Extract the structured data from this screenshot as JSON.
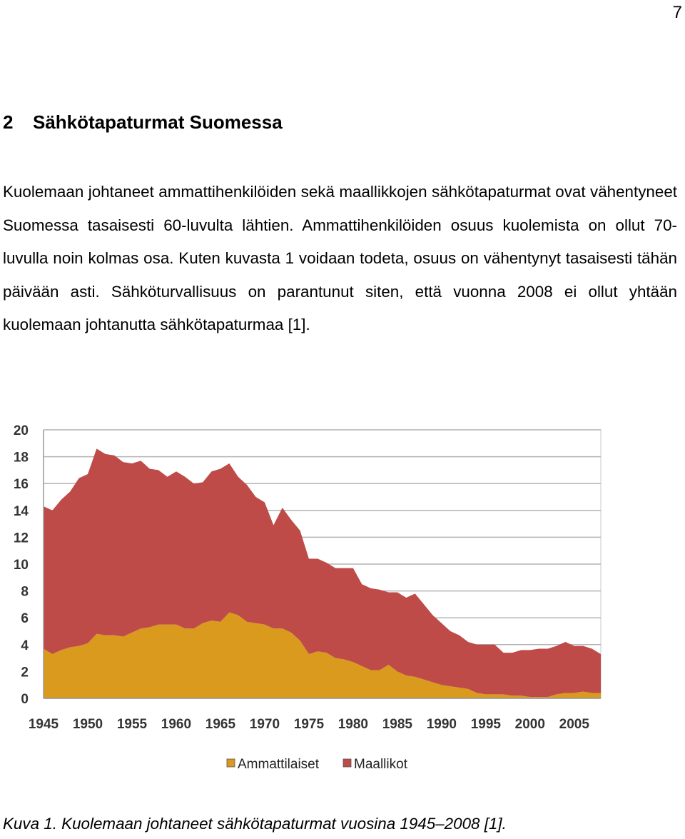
{
  "page_number": "7",
  "section": {
    "number": "2",
    "title": "Sähkötapaturmat Suomessa"
  },
  "paragraph": "Kuolemaan johtaneet ammattihenkilöiden sekä maallikkojen sähkötapaturmat ovat vähentyneet Suomessa tasaisesti 60-luvulta lähtien. Ammattihenkilöiden osuus kuolemista on ollut 70-luvulla noin kolmas osa. Kuten kuvasta 1 voidaan todeta, osuus on vähentynyt tasaisesti tähän päivään asti. Sähköturvallisuus on parantunut siten, että vuonna 2008 ei ollut yhtään kuolemaan johtanutta sähkötapaturmaa [1].",
  "caption": "Kuva 1. Kuolemaan johtaneet sähkötapaturmat vuosina 1945–2008 [1].",
  "chart_data": {
    "type": "area",
    "stacked": true,
    "title": "",
    "xlabel": "",
    "ylabel": "",
    "xlim": [
      1945,
      2008
    ],
    "ylim": [
      0,
      20
    ],
    "x_ticks": [
      "1945",
      "1950",
      "1955",
      "1960",
      "1965",
      "1970",
      "1975",
      "1980",
      "1985",
      "1990",
      "1995",
      "2000",
      "2005"
    ],
    "y_ticks": [
      "0",
      "2",
      "4",
      "6",
      "8",
      "10",
      "12",
      "14",
      "16",
      "18",
      "20"
    ],
    "grid": "horizontal",
    "legend_position": "bottom",
    "x": [
      1945,
      1946,
      1947,
      1948,
      1949,
      1950,
      1951,
      1952,
      1953,
      1954,
      1955,
      1956,
      1957,
      1958,
      1959,
      1960,
      1961,
      1962,
      1963,
      1964,
      1965,
      1966,
      1967,
      1968,
      1969,
      1970,
      1971,
      1972,
      1973,
      1974,
      1975,
      1976,
      1977,
      1978,
      1979,
      1980,
      1981,
      1982,
      1983,
      1984,
      1985,
      1986,
      1987,
      1988,
      1989,
      1990,
      1991,
      1992,
      1993,
      1994,
      1995,
      1996,
      1997,
      1998,
      1999,
      2000,
      2001,
      2002,
      2003,
      2004,
      2005,
      2006,
      2007,
      2008
    ],
    "series": [
      {
        "name": "Ammattilaiset",
        "color": "#d99a1e",
        "values": [
          3.7,
          3.3,
          3.6,
          3.8,
          3.9,
          4.1,
          4.8,
          4.7,
          4.7,
          4.6,
          4.9,
          5.2,
          5.3,
          5.5,
          5.5,
          5.5,
          5.2,
          5.2,
          5.6,
          5.8,
          5.7,
          6.4,
          6.2,
          5.7,
          5.6,
          5.5,
          5.2,
          5.2,
          4.9,
          4.3,
          3.3,
          3.5,
          3.4,
          3.0,
          2.9,
          2.7,
          2.4,
          2.1,
          2.1,
          2.5,
          2.0,
          1.7,
          1.6,
          1.4,
          1.2,
          1.0,
          0.9,
          0.8,
          0.7,
          0.4,
          0.3,
          0.3,
          0.3,
          0.2,
          0.2,
          0.1,
          0.1,
          0.1,
          0.3,
          0.4,
          0.4,
          0.5,
          0.4,
          0.4
        ]
      },
      {
        "name": "Maallikot",
        "color": "#be4b48",
        "values": [
          10.6,
          10.7,
          11.2,
          11.6,
          12.5,
          12.6,
          13.8,
          13.5,
          13.4,
          13.0,
          12.6,
          12.5,
          11.8,
          11.5,
          11.0,
          11.4,
          11.3,
          10.8,
          10.5,
          11.1,
          11.4,
          11.1,
          10.3,
          10.2,
          9.4,
          9.1,
          7.7,
          9.0,
          8.4,
          8.2,
          7.1,
          6.9,
          6.7,
          6.7,
          6.8,
          7.0,
          6.1,
          6.1,
          6.0,
          5.4,
          5.9,
          5.8,
          6.2,
          5.6,
          5.0,
          4.6,
          4.1,
          3.9,
          3.5,
          3.6,
          3.7,
          3.7,
          3.1,
          3.2,
          3.4,
          3.5,
          3.6,
          3.6,
          3.6,
          3.8,
          3.5,
          3.4,
          3.3,
          2.9
        ]
      }
    ]
  }
}
